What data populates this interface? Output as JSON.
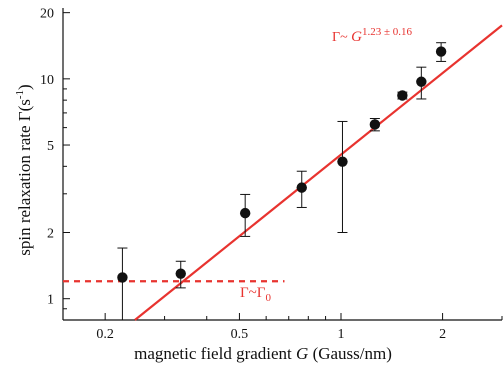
{
  "chart_data": {
    "type": "scatter",
    "xlabel_prefix": "magnetic field gradient ",
    "xlabel_var": "G",
    "xlabel_suffix": " (Gauss/nm)",
    "ylabel": "spin relaxation rate  Γ(s",
    "ylabel_sup": "-1",
    "ylabel_close": ")",
    "xscale": "log",
    "yscale": "log",
    "xlim": [
      0.15,
      3.0
    ],
    "ylim": [
      0.8,
      21
    ],
    "xticks": [
      0.2,
      0.5,
      1,
      2
    ],
    "xtick_labels": [
      "0.2",
      "0.5",
      "1",
      "2"
    ],
    "yticks": [
      1,
      2,
      5,
      10,
      20
    ],
    "ytick_labels": [
      "1",
      "2",
      "5",
      "10",
      "20"
    ],
    "grid": false,
    "colors": {
      "data": "#111111",
      "fit": "#e8332f"
    },
    "points": [
      {
        "x": 0.225,
        "y": 1.25,
        "err_low": 0.45,
        "err_high": 0.45
      },
      {
        "x": 0.335,
        "y": 1.3,
        "err_low": 0.18,
        "err_high": 0.18
      },
      {
        "x": 0.52,
        "y": 2.45,
        "err_low": 0.53,
        "err_high": 0.53
      },
      {
        "x": 0.765,
        "y": 3.2,
        "err_low": 0.6,
        "err_high": 0.6
      },
      {
        "x": 1.01,
        "y": 4.2,
        "err_low": 2.2,
        "err_high": 2.2
      },
      {
        "x": 1.26,
        "y": 6.2,
        "err_low": 0.4,
        "err_high": 0.4
      },
      {
        "x": 1.52,
        "y": 8.4,
        "err_low": 0.3,
        "err_high": 0.3
      },
      {
        "x": 1.73,
        "y": 9.7,
        "err_low": 1.6,
        "err_high": 1.6
      },
      {
        "x": 1.98,
        "y": 13.3,
        "err_low": 1.3,
        "err_high": 1.3
      }
    ],
    "fit_line": {
      "x": [
        0.245,
        3.0
      ],
      "y": [
        0.8,
        17.5
      ],
      "label_prefix": "Γ~ ",
      "label_var": "G",
      "label_exp": "1.23 ± 0.16"
    },
    "baseline": {
      "y": 1.2,
      "x": [
        0.15,
        0.68
      ],
      "style": "dashed",
      "label_base": "Γ~Γ",
      "label_sub": "0"
    }
  }
}
